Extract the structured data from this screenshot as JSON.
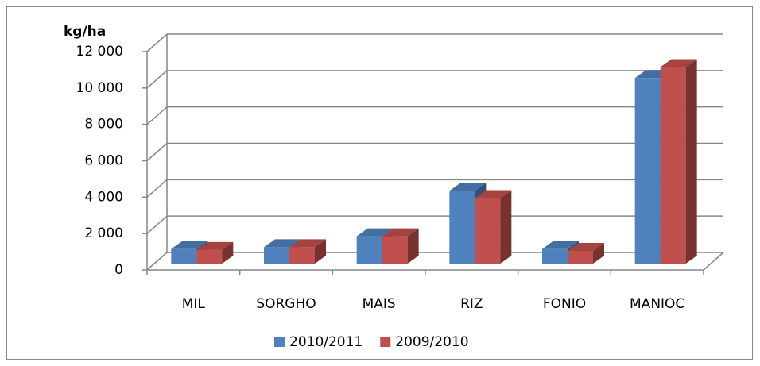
{
  "chart_data": {
    "type": "bar",
    "y_label": "kg/ha",
    "categories": [
      "MIL",
      "SORGHO",
      "MAIS",
      "RIZ",
      "FONIO",
      "MANIOC"
    ],
    "series": [
      {
        "name": "2010/2011",
        "color": "#4f81bd",
        "values": [
          800,
          900,
          1500,
          4000,
          800,
          10200
        ]
      },
      {
        "name": "2009/2010",
        "color": "#c0504d",
        "values": [
          750,
          900,
          1500,
          3600,
          700,
          10800
        ]
      }
    ],
    "ylim": [
      0,
      12000
    ],
    "yticks": [
      0,
      {
        "value": 2000,
        "label": "2 000"
      },
      {
        "value": 4000,
        "label": "4 000"
      },
      {
        "value": 6000,
        "label": "6 000"
      },
      {
        "value": 8000,
        "label": "8 000"
      },
      {
        "value": 10000,
        "label": "10 000"
      },
      {
        "value": 12000,
        "label": "12 000"
      }
    ],
    "grid": true,
    "legend": "bottom"
  }
}
